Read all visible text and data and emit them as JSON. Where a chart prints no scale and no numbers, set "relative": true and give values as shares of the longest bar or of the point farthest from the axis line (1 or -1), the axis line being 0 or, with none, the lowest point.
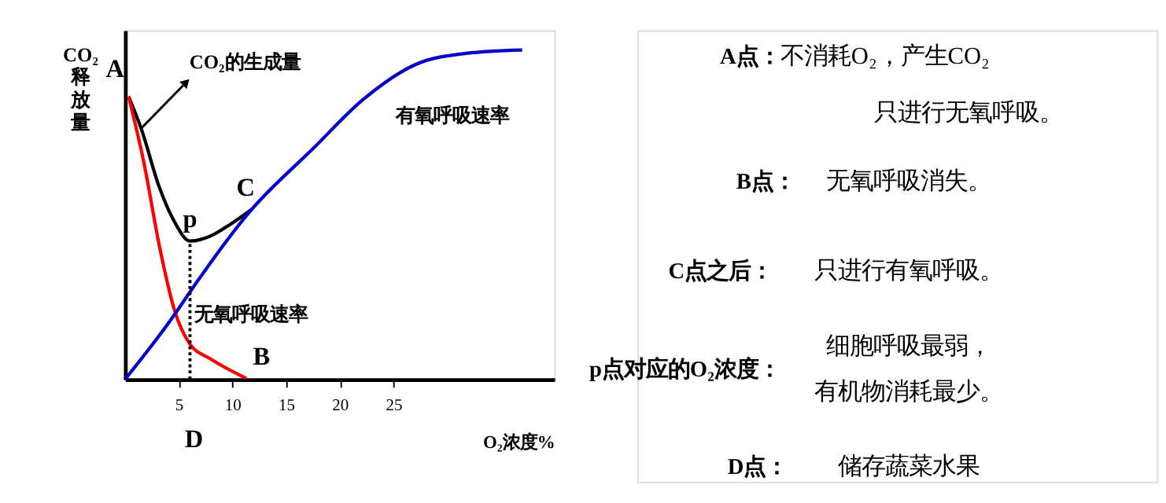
{
  "chart_data": {
    "type": "line",
    "relative": true,
    "ylabel": "CO₂释放量",
    "xlabel": "O₂浓度%",
    "xlim": [
      0,
      40
    ],
    "xticks": [
      5,
      10,
      15,
      20,
      25
    ],
    "grid": false,
    "marker": "none",
    "line_style": "solid",
    "series": [
      {
        "name": "CO₂的生成量",
        "color": "#000000",
        "x": [
          0.33,
          1.5,
          3.2,
          4.6,
          6.05,
          7.95,
          9.86,
          11.8
        ],
        "values": [
          0.859,
          0.762,
          0.583,
          0.479,
          0.42,
          0.435,
          0.472,
          0.516
        ]
      },
      {
        "name": "无氧呼吸速率",
        "color": "#ff0000",
        "x": [
          0.33,
          1.76,
          3.2,
          4.6,
          6.05,
          7.95,
          11.3
        ],
        "values": [
          0.859,
          0.658,
          0.405,
          0.211,
          0.107,
          0.0625,
          0.003
        ]
      },
      {
        "name": "有氧呼吸速率",
        "color": "#0000cc",
        "x": [
          0,
          4.6,
          6.0,
          11.8,
          17.5,
          22.2,
          27,
          31.8,
          37
        ],
        "values": [
          0,
          0.196,
          0.263,
          0.516,
          0.7,
          0.85,
          0.955,
          0.99,
          1.0
        ]
      },
      {
        "color": "#000000",
        "line_style": "dotted",
        "x": [
          6.05,
          6.05
        ],
        "values": [
          0,
          0.42
        ]
      }
    ],
    "annotations": [
      {
        "text": "A",
        "x": 0.33,
        "y": 0.859
      },
      {
        "text": "p",
        "x": 6.05,
        "y": 0.42
      },
      {
        "text": "C",
        "x": 11.8,
        "y": 0.516
      },
      {
        "text": "B",
        "x": 11.3,
        "y": 0.003
      },
      "D",
      "A点：",
      "不消耗O₂，产生CO₂",
      "只进行无氧呼吸。",
      "B点：",
      "无氧呼吸消失。",
      "C点之后：",
      "只进行有氧呼吸。",
      "p点对应的O₂浓度：",
      "细胞呼吸最弱，",
      "有机物消耗最少。",
      "D点：",
      "储存蔬菜水果"
    ]
  }
}
